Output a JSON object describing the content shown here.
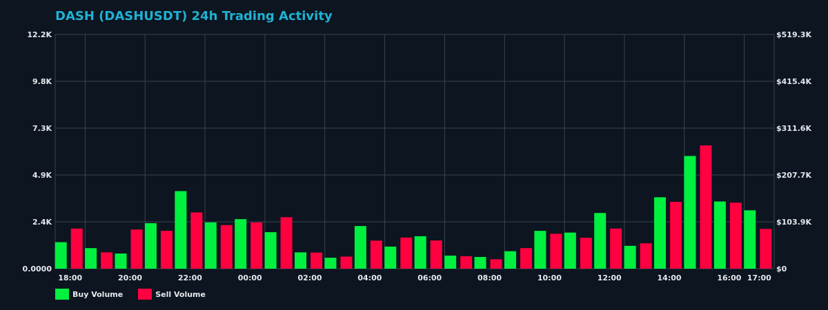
{
  "chart_data": {
    "type": "bar",
    "title": "DASH (DASHUSDT) 24h Trading Activity",
    "xlabel": "",
    "ylabel": "",
    "ylim": [
      0,
      12200
    ],
    "y_right_lim": [
      0,
      519300
    ],
    "y_tick_labels": [
      "0.0000",
      "2.4K",
      "4.9K",
      "7.3K",
      "9.8K",
      "12.2K"
    ],
    "y_right_tick_labels": [
      "$0",
      "$103.9K",
      "$207.7K",
      "$311.6K",
      "$415.4K",
      "$519.3K"
    ],
    "x_tick_labels": [
      "18:00",
      "20:00",
      "22:00",
      "00:00",
      "02:00",
      "04:00",
      "06:00",
      "08:00",
      "10:00",
      "12:00",
      "14:00",
      "16:00",
      "17:00"
    ],
    "grid": true,
    "legend_position": "bottom-left",
    "colors": {
      "buy": "#00f040",
      "sell": "#ff0040"
    },
    "series": [
      {
        "name": "Buy Volume",
        "values": [
          1380,
          1070,
          790,
          2370,
          4040,
          2410,
          2580,
          1900,
          850,
          570,
          2220,
          1150,
          1690,
          680,
          610,
          910,
          1970,
          1880,
          2900,
          1190,
          3720,
          5870,
          3500,
          3040
        ]
      },
      {
        "name": "Sell Volume",
        "values": [
          2090,
          850,
          2040,
          1970,
          2930,
          2270,
          2410,
          2680,
          840,
          630,
          1460,
          1620,
          1470,
          650,
          490,
          1070,
          1820,
          1610,
          2090,
          1320,
          3480,
          6420,
          3440,
          2070
        ]
      }
    ]
  }
}
